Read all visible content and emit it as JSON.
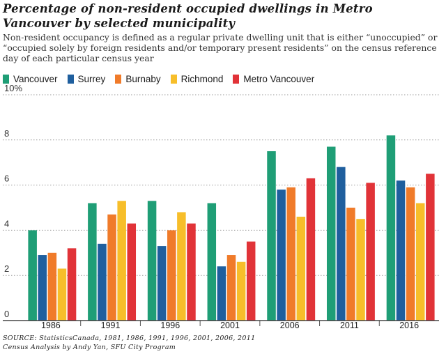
{
  "title": "Percentage of non-resident occupied dwellings in Metro Vancouver by selected municipality",
  "subtitle": "Non-resident occupancy is defined as a regular private dwelling unit that is either “unoccupied” or “occupied solely by foreign residents and/or temporary present residents” on the census reference day of each particular census year",
  "source_lines": [
    "SOURCE: StatisticsCanada, 1981, 1986, 1991, 1996, 2001, 2006, 2011",
    "Census Analysis by Andy Yan, SFU City Program"
  ],
  "chart_data": {
    "type": "bar",
    "categories": [
      "1986",
      "1991",
      "1996",
      "2001",
      "2006",
      "2011",
      "2016"
    ],
    "series": [
      {
        "name": "Vancouver",
        "color": "#1f9e76",
        "values": [
          4.0,
          5.2,
          5.3,
          5.2,
          7.5,
          7.7,
          8.2
        ]
      },
      {
        "name": "Surrey",
        "color": "#1f5f9e",
        "values": [
          2.9,
          3.4,
          3.3,
          2.4,
          5.8,
          6.8,
          6.2
        ]
      },
      {
        "name": "Burnaby",
        "color": "#f07b2a",
        "values": [
          3.0,
          4.7,
          4.0,
          2.9,
          5.9,
          5.0,
          5.9
        ]
      },
      {
        "name": "Richmond",
        "color": "#f7be2a",
        "values": [
          2.3,
          5.3,
          4.8,
          2.6,
          4.6,
          4.5,
          5.2
        ]
      },
      {
        "name": "Metro Vancouver",
        "color": "#e13338",
        "values": [
          3.2,
          4.3,
          4.3,
          3.5,
          6.3,
          6.1,
          6.5
        ]
      }
    ],
    "y_ticks": [
      "0",
      "2",
      "4",
      "6",
      "8",
      "10%"
    ],
    "ylim": [
      0,
      10
    ],
    "grid": true,
    "legend_position": "top-left"
  }
}
